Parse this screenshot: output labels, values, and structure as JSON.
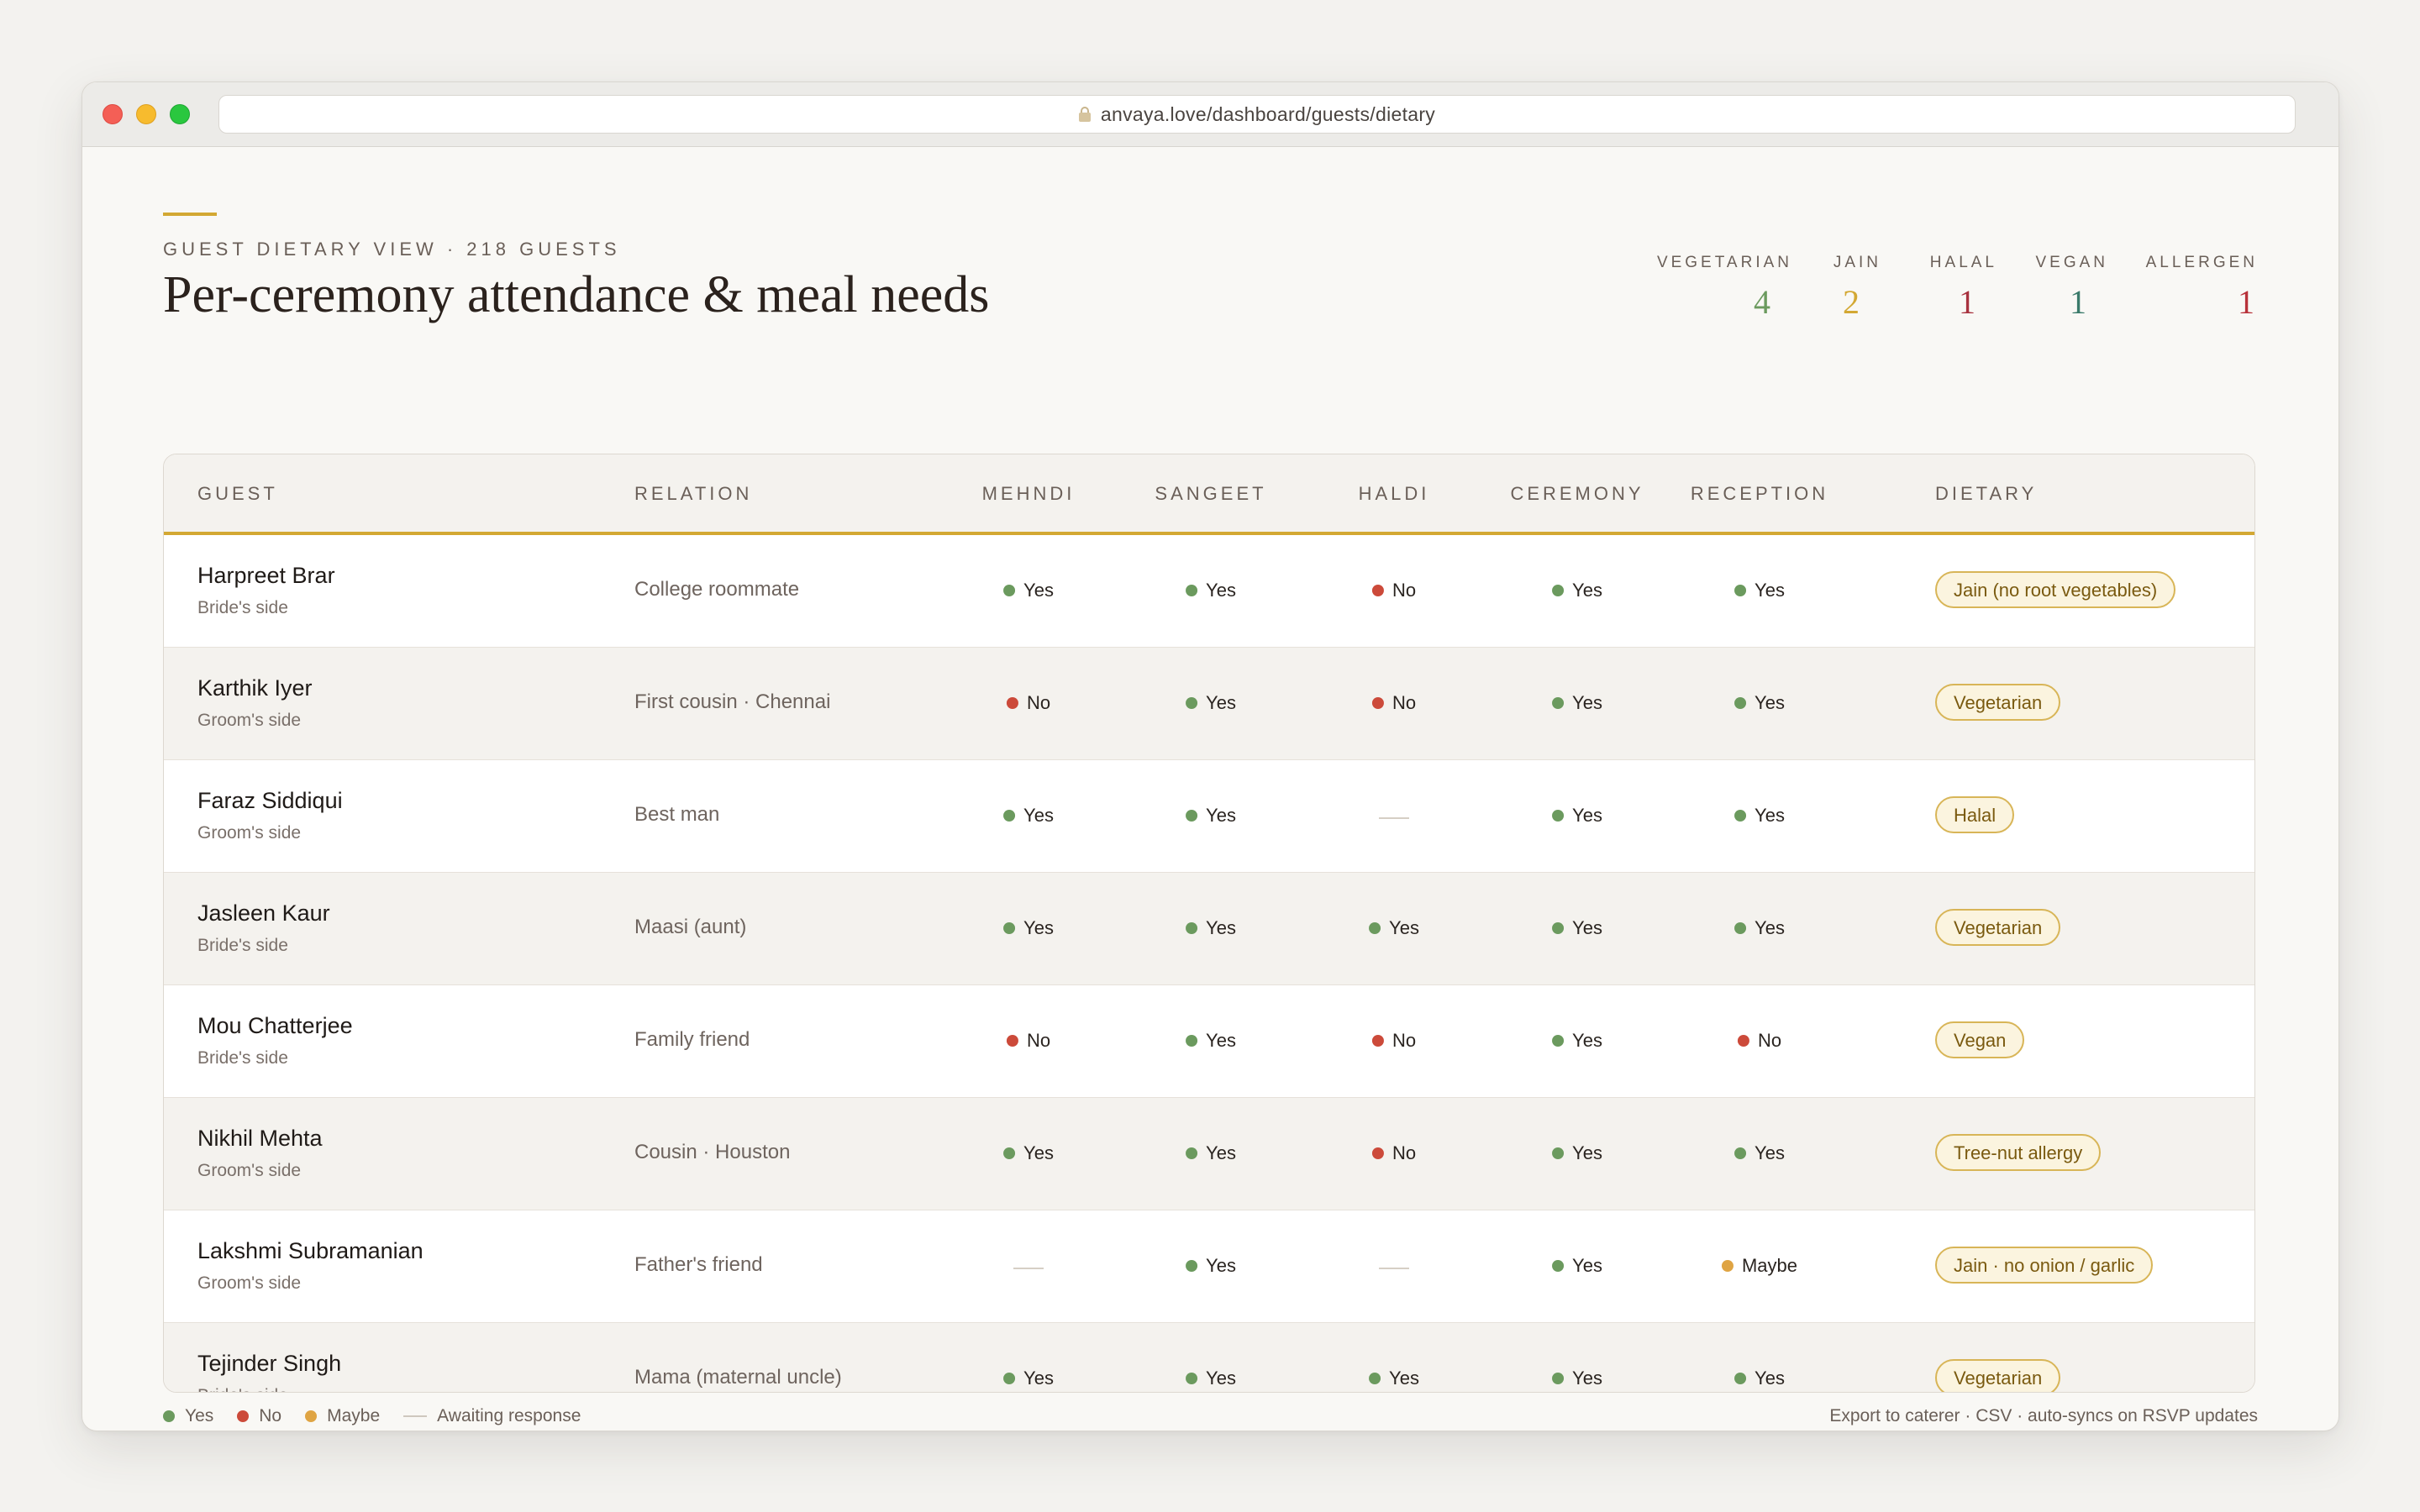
{
  "browser": {
    "url": "anvaya.love/dashboard/guests/dietary"
  },
  "header": {
    "eyebrow": "GUEST DIETARY VIEW · 218 GUESTS",
    "title": "Per-ceremony attendance & meal needs"
  },
  "stats": [
    {
      "label": "VEGETARIAN",
      "value": "4",
      "color": "#6b9a5e"
    },
    {
      "label": "JAIN",
      "value": "2",
      "color": "#d3a833"
    },
    {
      "label": "HALAL",
      "value": "1",
      "color": "#a8323e"
    },
    {
      "label": "VEGAN",
      "value": "1",
      "color": "#3a7a6a"
    },
    {
      "label": "ALLERGEN",
      "value": "1",
      "color": "#b8323a"
    }
  ],
  "table": {
    "columns": [
      "GUEST",
      "RELATION",
      "MEHNDI",
      "SANGEET",
      "HALDI",
      "CEREMONY",
      "RECEPTION",
      "DIETARY"
    ],
    "rows": [
      {
        "name": "Harpreet Brar",
        "side": "Bride's side",
        "relation": "College roommate",
        "rsvp": [
          "Yes",
          "Yes",
          "No",
          "Yes",
          "Yes"
        ],
        "dietary": "Jain (no root vegetables)"
      },
      {
        "name": "Karthik Iyer",
        "side": "Groom's side",
        "relation": "First cousin · Chennai",
        "rsvp": [
          "No",
          "Yes",
          "No",
          "Yes",
          "Yes"
        ],
        "dietary": "Vegetarian"
      },
      {
        "name": "Faraz Siddiqui",
        "side": "Groom's side",
        "relation": "Best man",
        "rsvp": [
          "Yes",
          "Yes",
          "",
          "Yes",
          "Yes"
        ],
        "dietary": "Halal"
      },
      {
        "name": "Jasleen Kaur",
        "side": "Bride's side",
        "relation": "Maasi (aunt)",
        "rsvp": [
          "Yes",
          "Yes",
          "Yes",
          "Yes",
          "Yes"
        ],
        "dietary": "Vegetarian"
      },
      {
        "name": "Mou Chatterjee",
        "side": "Bride's side",
        "relation": "Family friend",
        "rsvp": [
          "No",
          "Yes",
          "No",
          "Yes",
          "No"
        ],
        "dietary": "Vegan"
      },
      {
        "name": "Nikhil Mehta",
        "side": "Groom's side",
        "relation": "Cousin · Houston",
        "rsvp": [
          "Yes",
          "Yes",
          "No",
          "Yes",
          "Yes"
        ],
        "dietary": "Tree-nut allergy"
      },
      {
        "name": "Lakshmi Subramanian",
        "side": "Groom's side",
        "relation": "Father's friend",
        "rsvp": [
          "",
          "Yes",
          "",
          "Yes",
          "Maybe"
        ],
        "dietary": "Jain · no onion / garlic"
      },
      {
        "name": "Tejinder Singh",
        "side": "Bride's side",
        "relation": "Mama (maternal uncle)",
        "rsvp": [
          "Yes",
          "Yes",
          "Yes",
          "Yes",
          "Yes"
        ],
        "dietary": "Vegetarian"
      }
    ]
  },
  "legend": {
    "yes": "Yes",
    "no": "No",
    "maybe": "Maybe",
    "awaiting": "Awaiting response"
  },
  "footer": {
    "note": "Export to caterer · CSV · auto-syncs on RSVP updates"
  },
  "colors": {
    "accent": "#d3a833",
    "yes": "#6b9a5e",
    "no": "#cc4a3a",
    "maybe": "#dfa443"
  }
}
